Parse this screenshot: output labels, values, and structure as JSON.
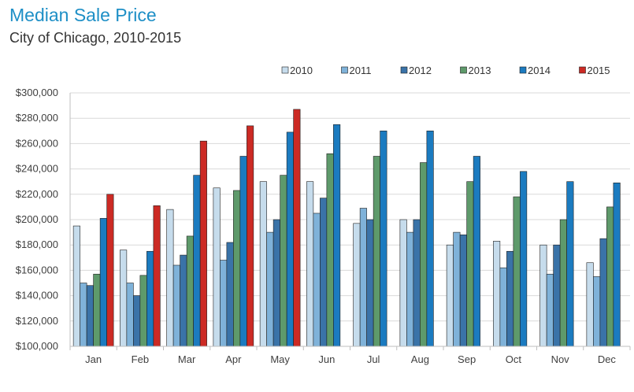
{
  "chart_data": {
    "type": "bar",
    "title": "Median Sale Price",
    "subtitle": "City of Chicago, 2010-2015",
    "xlabel": "",
    "ylabel": "",
    "ylim": [
      100000,
      300000
    ],
    "y_ticks": [
      100000,
      120000,
      140000,
      160000,
      180000,
      200000,
      220000,
      240000,
      260000,
      280000,
      300000
    ],
    "y_tick_labels": [
      "$100,000",
      "$120,000",
      "$140,000",
      "$160,000",
      "$180,000",
      "$200,000",
      "$220,000",
      "$240,000",
      "$260,000",
      "$280,000",
      "$300,000"
    ],
    "grid": true,
    "legend_position": "top-right",
    "categories": [
      "Jan",
      "Feb",
      "Mar",
      "Apr",
      "May",
      "Jun",
      "Jul",
      "Aug",
      "Sep",
      "Oct",
      "Nov",
      "Dec"
    ],
    "series": [
      {
        "name": "2010",
        "color": "#c6dcec",
        "values": [
          195000,
          176000,
          208000,
          225000,
          230000,
          230000,
          197000,
          200000,
          180000,
          183000,
          180000,
          166000
        ]
      },
      {
        "name": "2011",
        "color": "#7fb2d9",
        "values": [
          150000,
          150000,
          164000,
          168000,
          190000,
          205000,
          209000,
          190000,
          190000,
          162000,
          157000,
          155000
        ]
      },
      {
        "name": "2012",
        "color": "#3a73a8",
        "values": [
          148000,
          140000,
          172000,
          182000,
          200000,
          217000,
          200000,
          200000,
          188000,
          175000,
          180000,
          185000
        ]
      },
      {
        "name": "2013",
        "color": "#5e9a6b",
        "values": [
          157000,
          156000,
          187000,
          223000,
          235000,
          252000,
          250000,
          245000,
          230000,
          218000,
          200000,
          210000
        ]
      },
      {
        "name": "2014",
        "color": "#1b7bc0",
        "values": [
          201000,
          175000,
          235000,
          250000,
          269000,
          275000,
          270000,
          270000,
          250000,
          238000,
          230000,
          229000
        ]
      },
      {
        "name": "2015",
        "color": "#cc2a24",
        "values": [
          220000,
          211000,
          262000,
          274000,
          287000,
          null,
          null,
          null,
          null,
          null,
          null,
          null
        ]
      }
    ]
  }
}
